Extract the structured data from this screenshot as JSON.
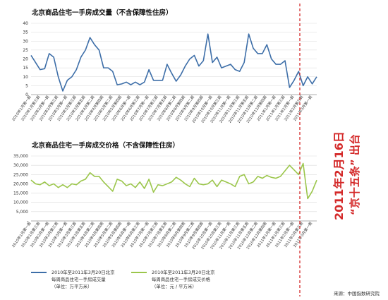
{
  "chart_data": [
    {
      "type": "line",
      "title": "北京商品住宅一手房成交量（不含保障性住房）",
      "ylim": [
        0,
        40
      ],
      "yticks": [
        "0",
        "5",
        "10",
        "15",
        "20",
        "25",
        "30",
        "35",
        "40"
      ],
      "grid": true,
      "legend_position": "bottom-left",
      "series": [
        {
          "name": "2010年至2011年3月20日北京每周商品住宅一手房成交量（单位：万平方米）",
          "color": "#3d6ea8",
          "values": [
            22,
            18,
            14,
            14.5,
            23,
            21,
            10,
            2,
            8,
            10,
            14,
            21,
            25,
            32,
            28,
            25,
            15,
            15,
            13,
            5.5,
            6,
            7,
            5.5,
            7,
            5.5,
            7,
            14,
            8,
            8,
            8,
            17,
            12,
            7.5,
            11,
            16,
            20,
            22,
            16,
            19,
            34,
            18,
            21,
            15,
            16,
            17,
            14,
            13,
            18,
            34,
            26,
            23,
            23,
            28,
            20,
            17,
            17,
            19,
            4,
            8,
            13,
            5,
            10,
            6,
            10
          ]
        }
      ],
      "x_labels": [
        "2010年1月第一周",
        "2010年1月第三周",
        "2010年2月第一周",
        "2010年2月第三周",
        "2010年3月第一周",
        "2010年3月第三周",
        "2010年3月第五周",
        "2010年4月第二周",
        "2010年4月第四周",
        "2010年5月第二周",
        "2010年5月第四周",
        "2010年6月第一周",
        "2010年6月第三周",
        "2010年7月第一周",
        "2010年7月第三周",
        "2010年7月第五周",
        "2010年8月第二周",
        "2010年8月第四周",
        "2010年9月第二周",
        "2010年9月第四周",
        "2010年10月第一周",
        "2010年10月第三周",
        "2010年11月第一周",
        "2010年11月第三周",
        "2010年11月第五周",
        "2010年12月第二周",
        "2010年12月第四周",
        "2011年1月第一周",
        "2011年1月第三周",
        "2011年2月第一周",
        "2011年2月第三周",
        "2011年3月第一周",
        "2011年3月第三周"
      ]
    },
    {
      "type": "line",
      "title": "北京商品住宅一手房成交价格（不含保障性住房）",
      "ylim": [
        0,
        35000
      ],
      "yticks": [
        "-",
        "5,000",
        "10,000",
        "15,000",
        "20,000",
        "25,000",
        "30,000",
        "35,000"
      ],
      "grid": true,
      "legend_position": "bottom-center",
      "series": [
        {
          "name": "2010年至2011年3月20日北京每周商品住宅一手房成交价格（单位：元/平方米）",
          "color": "#9bc64b",
          "values": [
            22000,
            20000,
            19500,
            21000,
            19000,
            20000,
            18000,
            19500,
            18000,
            20000,
            19500,
            21500,
            22500,
            26000,
            24000,
            24000,
            21000,
            18500,
            16000,
            22500,
            21500,
            19000,
            20000,
            18000,
            21000,
            17500,
            22500,
            15500,
            19500,
            19000,
            20000,
            21000,
            23500,
            22000,
            20000,
            18500,
            23000,
            20000,
            19500,
            20000,
            22000,
            18500,
            22000,
            21000,
            20000,
            18500,
            24000,
            25000,
            20000,
            21000,
            24000,
            23000,
            24500,
            23500,
            23000,
            24000,
            27000,
            30000,
            27500,
            25000,
            31000,
            12000,
            16000,
            22000
          ]
        }
      ],
      "x_labels": [
        "2010年1月第一周",
        "2010年1月第三周",
        "2010年2月第一周",
        "2010年2月第三周",
        "2010年3月第一周",
        "2010年3月第三周",
        "2010年3月第五周",
        "2010年4月第二周",
        "2010年4月第四周",
        "2010年5月第二周",
        "2010年5月第四周",
        "2010年6月第一周",
        "2010年6月第三周",
        "2010年7月第一周",
        "2010年7月第三周",
        "2010年7月第五周",
        "2010年8月第二周",
        "2010年8月第四周",
        "2010年9月第二周",
        "2010年9月第四周",
        "2010年10月第一周",
        "2010年10月第三周",
        "2010年11月第一周",
        "2010年11月第三周",
        "2010年11月第五周",
        "2010年12月第二周",
        "2010年12月第四周",
        "2011年1月第一周",
        "2011年1月第三周",
        "2011年2月第一周",
        "2011年2月第三周",
        "2011年3月第一周",
        "2011年3月第三周"
      ]
    }
  ],
  "legend": {
    "s1_line1": "2010年至2011年3月20日北京",
    "s1_line2": "每周商品住宅一手房成交量",
    "s1_line3": "（单位：万平方米）",
    "s2_line1": "2010年至2011年3月20日北京",
    "s2_line2": "每周商品住宅一手房成交价格",
    "s2_line3": "（单位：元 / 平方米）"
  },
  "annotation": {
    "line1": "2011年2月16日",
    "line2": "“京十五条” 出台",
    "color": "#d42a2a"
  },
  "source": "来源：中国指数研究院"
}
